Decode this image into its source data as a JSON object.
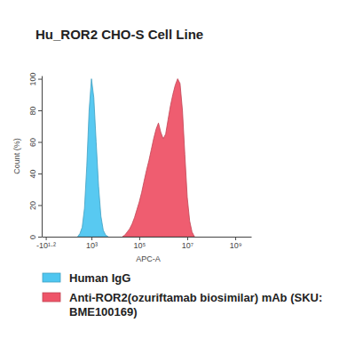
{
  "chart_data": {
    "type": "area",
    "title": "Hu_ROR2 CHO-S Cell Line",
    "x_label": "APC-A",
    "y_label": "Count (%)",
    "log": "x",
    "legend": "bottom",
    "x": [
      251,
      316,
      398,
      501,
      631,
      794,
      1000,
      1260,
      1580,
      2000,
      2510,
      3160,
      3980,
      5010,
      6310,
      7940,
      10000,
      12600,
      15800,
      20000,
      25100,
      31600,
      39800,
      50100,
      63100,
      79400,
      100000,
      126000,
      158000,
      200000,
      251000,
      316000,
      398000,
      501000,
      631000,
      794000,
      1000000,
      1260000,
      1580000,
      2000000,
      2510000,
      3160000,
      3980000,
      5010000,
      6310000,
      7940000,
      10000000,
      12600000,
      15800000,
      20000000
    ],
    "series": [
      {
        "name": "Human IgG",
        "color": "#4fc6f0",
        "values": [
          0,
          2,
          6,
          18,
          45,
          80,
          100,
          88,
          60,
          32,
          13,
          4,
          1,
          0,
          null,
          null,
          null,
          null,
          null,
          null,
          null,
          null,
          null,
          null,
          null,
          null,
          null,
          null,
          null,
          null,
          null,
          null,
          null,
          null,
          null,
          null,
          null,
          null,
          null,
          null,
          null,
          null,
          null,
          null,
          null,
          null,
          null,
          null,
          null,
          null
        ]
      },
      {
        "name": "Anti-ROR2(ozuriftamab biosimilar) mAb (SKU: BME100169)",
        "color": "#ee5468",
        "values": [
          null,
          null,
          null,
          null,
          null,
          null,
          null,
          null,
          null,
          null,
          null,
          null,
          null,
          null,
          null,
          null,
          null,
          null,
          null,
          0,
          1,
          3,
          5,
          8,
          12,
          17,
          22,
          28,
          35,
          42,
          48,
          55,
          62,
          68,
          72,
          66,
          62,
          65,
          74,
          83,
          90,
          96,
          100,
          97,
          80,
          52,
          25,
          10,
          3,
          0
        ]
      }
    ],
    "xlim": [
      -34,
      4600000000
    ],
    "xticks": [
      {
        "value": -15.85,
        "label": "-10¹·²"
      },
      {
        "value": 1000,
        "label": "10³"
      },
      {
        "value": 100000,
        "label": "10⁵"
      },
      {
        "value": 10000000,
        "label": "10⁷"
      },
      {
        "value": 1000000000,
        "label": "10⁹"
      }
    ],
    "ylim": [
      0,
      102
    ],
    "yticks": [
      0,
      20,
      40,
      60,
      80,
      100
    ]
  }
}
